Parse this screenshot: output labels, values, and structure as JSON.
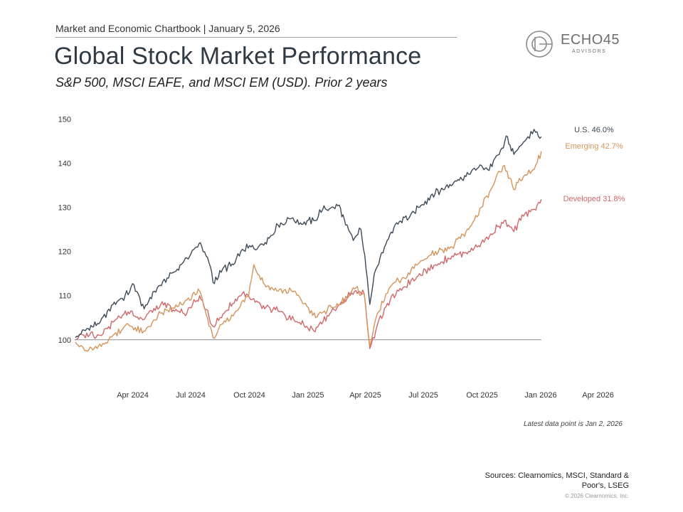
{
  "header": {
    "breadcrumb": "Market and Economic Chartbook | January 5, 2026",
    "title": "Global Stock Market Performance",
    "subtitle": "S&P 500, MSCI EAFE, and MSCI EM (USD). Prior 2 years"
  },
  "logo": {
    "name": "ECHO45",
    "tagline": "ADVISORS",
    "icon": "echo45-circle-logo"
  },
  "footer": {
    "note": "Latest data point is Jan 2, 2026",
    "sources": "Sources: Clearnomics, MSCI, Standard & Poor's, LSEG",
    "copyright": "© 2026 Clearnomics, Inc."
  },
  "chart_data": {
    "type": "line",
    "x_type": "date",
    "xlim": [
      "2024-01-01",
      "2026-05-15"
    ],
    "ylim": [
      94,
      152
    ],
    "x_ticks": [
      {
        "label": "Apr 2024",
        "x": "2024-04-01"
      },
      {
        "label": "Jul 2024",
        "x": "2024-07-01"
      },
      {
        "label": "Oct 2024",
        "x": "2024-10-01"
      },
      {
        "label": "Jan 2025",
        "x": "2025-01-01"
      },
      {
        "label": "Apr 2025",
        "x": "2025-04-01"
      },
      {
        "label": "Jul 2025",
        "x": "2025-07-01"
      },
      {
        "label": "Oct 2025",
        "x": "2025-10-01"
      },
      {
        "label": "Jan 2026",
        "x": "2026-01-01"
      },
      {
        "label": "Apr 2026",
        "x": "2026-04-01"
      }
    ],
    "y_ticks": [
      100,
      110,
      120,
      130,
      140,
      150
    ],
    "baseline": 100,
    "grid": false,
    "series": [
      {
        "name": "U.S.",
        "end_label": "U.S. 46.0%",
        "color": "#3d4a57",
        "x": [
          "2024-01-02",
          "2024-01-20",
          "2024-02-10",
          "2024-03-01",
          "2024-03-20",
          "2024-04-03",
          "2024-04-19",
          "2024-05-05",
          "2024-05-25",
          "2024-06-10",
          "2024-06-25",
          "2024-07-10",
          "2024-07-16",
          "2024-08-01",
          "2024-08-05",
          "2024-08-20",
          "2024-09-06",
          "2024-09-20",
          "2024-10-15",
          "2024-11-01",
          "2024-11-15",
          "2024-12-06",
          "2024-12-20",
          "2025-01-10",
          "2025-01-24",
          "2025-02-10",
          "2025-02-19",
          "2025-03-01",
          "2025-03-13",
          "2025-03-25",
          "2025-04-04",
          "2025-04-08",
          "2025-04-15",
          "2025-05-01",
          "2025-05-20",
          "2025-06-10",
          "2025-06-25",
          "2025-07-15",
          "2025-08-01",
          "2025-08-20",
          "2025-09-10",
          "2025-09-30",
          "2025-10-10",
          "2025-10-28",
          "2025-11-10",
          "2025-11-20",
          "2025-12-01",
          "2025-12-12",
          "2025-12-24",
          "2026-01-02"
        ],
        "y": [
          100.5,
          102.5,
          104,
          108,
          110,
          112.5,
          107,
          111,
          114,
          116,
          118.5,
          121,
          122,
          116.5,
          113,
          116,
          117,
          120.5,
          121,
          123,
          126,
          127.5,
          126.5,
          127,
          129.5,
          130,
          130.5,
          126,
          122.5,
          125,
          114,
          108,
          115,
          121,
          126.5,
          128,
          130,
          133,
          134,
          136,
          137.5,
          139.5,
          138.5,
          142,
          146,
          142,
          144,
          146,
          147,
          146
        ]
      },
      {
        "name": "Emerging",
        "end_label": "Emerging 42.7%",
        "color": "#d4945a",
        "x": [
          "2024-01-02",
          "2024-01-17",
          "2024-02-05",
          "2024-03-01",
          "2024-03-25",
          "2024-04-16",
          "2024-05-15",
          "2024-06-10",
          "2024-06-25",
          "2024-07-15",
          "2024-08-05",
          "2024-08-25",
          "2024-09-10",
          "2024-09-30",
          "2024-10-08",
          "2024-10-25",
          "2024-11-15",
          "2024-12-10",
          "2025-01-13",
          "2025-01-27",
          "2025-02-20",
          "2025-03-15",
          "2025-03-30",
          "2025-04-08",
          "2025-04-20",
          "2025-05-10",
          "2025-06-01",
          "2025-06-25",
          "2025-07-20",
          "2025-08-15",
          "2025-09-10",
          "2025-09-30",
          "2025-10-15",
          "2025-11-05",
          "2025-11-20",
          "2025-12-05",
          "2025-12-20",
          "2026-01-02"
        ],
        "y": [
          99.5,
          97.5,
          98,
          101,
          103.5,
          101.5,
          106,
          107.5,
          109,
          111,
          100.5,
          104,
          106.5,
          110,
          117,
          112.5,
          111,
          111,
          105,
          106.5,
          108,
          111.5,
          110.5,
          98.5,
          106,
          112,
          114,
          117.5,
          120,
          121,
          125,
          130,
          134,
          139.5,
          134,
          137,
          138.5,
          142.7
        ]
      },
      {
        "name": "Developed",
        "end_label": "Developed 31.8%",
        "color": "#d0676a",
        "x": [
          "2024-01-02",
          "2024-01-20",
          "2024-02-10",
          "2024-03-01",
          "2024-03-29",
          "2024-04-17",
          "2024-05-15",
          "2024-06-10",
          "2024-06-25",
          "2024-07-15",
          "2024-08-05",
          "2024-08-25",
          "2024-09-20",
          "2024-10-10",
          "2024-10-25",
          "2024-11-15",
          "2024-12-10",
          "2025-01-10",
          "2025-01-31",
          "2025-02-20",
          "2025-03-15",
          "2025-03-30",
          "2025-04-08",
          "2025-04-20",
          "2025-05-10",
          "2025-06-01",
          "2025-06-25",
          "2025-07-20",
          "2025-08-15",
          "2025-09-10",
          "2025-09-30",
          "2025-10-15",
          "2025-11-05",
          "2025-11-20",
          "2025-12-05",
          "2025-12-20",
          "2026-01-02"
        ],
        "y": [
          100,
          101.5,
          101,
          104,
          106.5,
          104.5,
          108,
          106.5,
          106,
          110,
          103,
          106.5,
          110.5,
          108.5,
          107,
          106.5,
          104.5,
          102,
          105.5,
          108,
          111,
          110.5,
          98,
          103.5,
          109,
          112,
          115,
          117,
          119,
          120,
          122,
          124,
          127,
          124.5,
          128,
          129.5,
          131.8
        ]
      }
    ]
  }
}
